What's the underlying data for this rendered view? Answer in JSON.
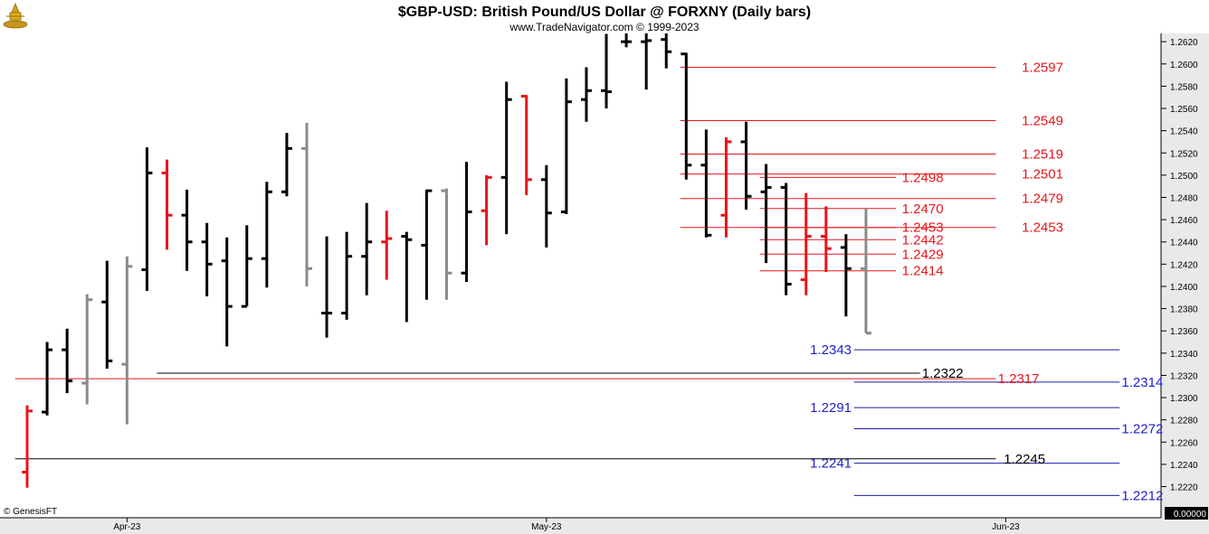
{
  "header": {
    "title": "$GBP-USD:  British Pound/US Dollar @ FORXNY  (Daily bars)",
    "subtitle": "www.TradeNavigator.com © 1999-2023"
  },
  "credit": "© GenesisFT",
  "logo_icon": "genesis-gold-logo-icon",
  "readout_box": "0.00000",
  "colors": {
    "background": "#ffffff",
    "panel": "#e9e9e9",
    "bar_black": "#000000",
    "bar_red": "#e8141c",
    "bar_gray": "#8a8a8a",
    "line_red": "#e8141c",
    "line_blue": "#1a1aa8",
    "line_black": "#000000",
    "label_red": "#e8141c",
    "label_blue": "#1e1ec8",
    "label_black": "#000000"
  },
  "chart_data": {
    "type": "ohlc",
    "y_axis": {
      "min": 1.2205,
      "max": 1.2625,
      "ticks": [
        "1.2220",
        "1.2240",
        "1.2260",
        "1.2280",
        "1.2300",
        "1.2320",
        "1.2340",
        "1.2360",
        "1.2380",
        "1.2400",
        "1.2420",
        "1.2440",
        "1.2460",
        "1.2480",
        "1.2500",
        "1.2520",
        "1.2540",
        "1.2560",
        "1.2580",
        "1.2600",
        "1.2620"
      ]
    },
    "x_axis": {
      "ticks": [
        {
          "label": "Apr-23",
          "index": 5
        },
        {
          "label": "May-23",
          "index": 26
        },
        {
          "label": "Jun-23",
          "index": 49
        }
      ]
    },
    "bars": [
      {
        "o": 1.2233,
        "h": 1.2293,
        "l": 1.2219,
        "c": 1.2288,
        "color": "red"
      },
      {
        "o": 1.2287,
        "h": 1.235,
        "l": 1.2284,
        "c": 1.2343,
        "color": "black"
      },
      {
        "o": 1.2343,
        "h": 1.2362,
        "l": 1.2304,
        "c": 1.2315,
        "color": "black"
      },
      {
        "o": 1.2313,
        "h": 1.2393,
        "l": 1.2294,
        "c": 1.2388,
        "color": "gray"
      },
      {
        "o": 1.2386,
        "h": 1.2423,
        "l": 1.2326,
        "c": 1.2333,
        "color": "black"
      },
      {
        "o": 1.233,
        "h": 1.2427,
        "l": 1.2276,
        "c": 1.2418,
        "color": "gray"
      },
      {
        "o": 1.2415,
        "h": 1.2525,
        "l": 1.2396,
        "c": 1.2502,
        "color": "black"
      },
      {
        "o": 1.2502,
        "h": 1.2514,
        "l": 1.2433,
        "c": 1.2464,
        "color": "red"
      },
      {
        "o": 1.2464,
        "h": 1.2487,
        "l": 1.2414,
        "c": 1.244,
        "color": "black"
      },
      {
        "o": 1.244,
        "h": 1.2457,
        "l": 1.2391,
        "c": 1.242,
        "color": "black"
      },
      {
        "o": 1.2423,
        "h": 1.2444,
        "l": 1.2346,
        "c": 1.2382,
        "color": "black"
      },
      {
        "o": 1.2382,
        "h": 1.2455,
        "l": 1.2382,
        "c": 1.2425,
        "color": "black"
      },
      {
        "o": 1.2425,
        "h": 1.2494,
        "l": 1.2399,
        "c": 1.2485,
        "color": "black"
      },
      {
        "o": 1.2485,
        "h": 1.2538,
        "l": 1.2481,
        "c": 1.2524,
        "color": "black"
      },
      {
        "o": 1.2524,
        "h": 1.2547,
        "l": 1.24,
        "c": 1.2416,
        "color": "gray"
      },
      {
        "o": 1.2376,
        "h": 1.2445,
        "l": 1.2354,
        "c": 1.2376,
        "color": "black"
      },
      {
        "o": 1.2376,
        "h": 1.2449,
        "l": 1.237,
        "c": 1.2427,
        "color": "black"
      },
      {
        "o": 1.2427,
        "h": 1.2475,
        "l": 1.2392,
        "c": 1.244,
        "color": "black"
      },
      {
        "o": 1.244,
        "h": 1.2468,
        "l": 1.2406,
        "c": 1.2443,
        "color": "red"
      },
      {
        "o": 1.2445,
        "h": 1.2449,
        "l": 1.2368,
        "c": 1.2442,
        "color": "black"
      },
      {
        "o": 1.2437,
        "h": 1.2487,
        "l": 1.2388,
        "c": 1.2486,
        "color": "black"
      },
      {
        "o": 1.2486,
        "h": 1.2488,
        "l": 1.2388,
        "c": 1.2412,
        "color": "gray"
      },
      {
        "o": 1.2412,
        "h": 1.2512,
        "l": 1.2404,
        "c": 1.2467,
        "color": "black"
      },
      {
        "o": 1.2468,
        "h": 1.25,
        "l": 1.2437,
        "c": 1.2498,
        "color": "red"
      },
      {
        "o": 1.2498,
        "h": 1.2584,
        "l": 1.2447,
        "c": 1.2568,
        "color": "black"
      },
      {
        "o": 1.2571,
        "h": 1.2572,
        "l": 1.2482,
        "c": 1.2496,
        "color": "red"
      },
      {
        "o": 1.2496,
        "h": 1.2509,
        "l": 1.2435,
        "c": 1.2466,
        "color": "black"
      },
      {
        "o": 1.2467,
        "h": 1.2587,
        "l": 1.2465,
        "c": 1.2566,
        "color": "black"
      },
      {
        "o": 1.2568,
        "h": 1.2597,
        "l": 1.2548,
        "c": 1.2576,
        "color": "black"
      },
      {
        "o": 1.2576,
        "h": 1.2627,
        "l": 1.256,
        "c": 1.2575,
        "color": "black"
      },
      {
        "o": 1.262,
        "h": 1.263,
        "l": 1.2615,
        "c": 1.262,
        "color": "black"
      },
      {
        "o": 1.262,
        "h": 1.263,
        "l": 1.2577,
        "c": 1.2621,
        "color": "black"
      },
      {
        "o": 1.2622,
        "h": 1.2628,
        "l": 1.2596,
        "c": 1.2611,
        "color": "black"
      },
      {
        "o": 1.2609,
        "h": 1.261,
        "l": 1.2496,
        "c": 1.2509,
        "color": "black"
      },
      {
        "o": 1.2509,
        "h": 1.2541,
        "l": 1.2444,
        "c": 1.2446,
        "color": "black"
      },
      {
        "o": 1.2464,
        "h": 1.2534,
        "l": 1.2444,
        "c": 1.253,
        "color": "red"
      },
      {
        "o": 1.253,
        "h": 1.2548,
        "l": 1.2469,
        "c": 1.2481,
        "color": "black"
      },
      {
        "o": 1.2485,
        "h": 1.251,
        "l": 1.2421,
        "c": 1.2489,
        "color": "black"
      },
      {
        "o": 1.2489,
        "h": 1.2493,
        "l": 1.2392,
        "c": 1.2402,
        "color": "black"
      },
      {
        "o": 1.2406,
        "h": 1.2484,
        "l": 1.2392,
        "c": 1.2445,
        "color": "red"
      },
      {
        "o": 1.2445,
        "h": 1.2472,
        "l": 1.2413,
        "c": 1.2434,
        "color": "red"
      },
      {
        "o": 1.2435,
        "h": 1.2447,
        "l": 1.2373,
        "c": 1.2416,
        "color": "black"
      },
      {
        "o": 1.2416,
        "h": 1.247,
        "l": 1.2358,
        "c": 1.2358,
        "color": "gray"
      }
    ],
    "levels": [
      {
        "price": 1.2597,
        "label": "1.2597",
        "color": "red",
        "from": 32.7,
        "to": 48.5,
        "label_at": 49.8
      },
      {
        "price": 1.2549,
        "label": "1.2549",
        "color": "red",
        "from": 32.7,
        "to": 48.5,
        "label_at": 49.8
      },
      {
        "price": 1.2519,
        "label": "1.2519",
        "color": "red",
        "from": 32.7,
        "to": 48.5,
        "label_at": 49.8
      },
      {
        "price": 1.2501,
        "label": "1.2501",
        "color": "red",
        "from": 32.7,
        "to": 48.5,
        "label_at": 49.8
      },
      {
        "price": 1.2479,
        "label": "1.2479",
        "color": "red",
        "from": 32.7,
        "to": 48.5,
        "label_at": 49.8
      },
      {
        "price": 1.2453,
        "label": "1.2453",
        "color": "red",
        "from": 32.7,
        "to": 48.5,
        "label_at": 49.8
      },
      {
        "price": 1.2498,
        "label": "1.2498",
        "color": "red",
        "from": 36.7,
        "to": 43.5,
        "label_at": 43.8
      },
      {
        "price": 1.247,
        "label": "1.2470",
        "color": "red",
        "from": 36.7,
        "to": 43.5,
        "label_at": 43.8
      },
      {
        "price": 1.2453,
        "label": "1.2453",
        "color": "red",
        "from": 36.7,
        "to": 43.5,
        "label_at": 43.8
      },
      {
        "price": 1.2442,
        "label": "1.2442",
        "color": "red",
        "from": 36.7,
        "to": 43.5,
        "label_at": 43.8
      },
      {
        "price": 1.2429,
        "label": "1.2429",
        "color": "red",
        "from": 36.7,
        "to": 43.5,
        "label_at": 43.8
      },
      {
        "price": 1.2414,
        "label": "1.2414",
        "color": "red",
        "from": 36.7,
        "to": 43.5,
        "label_at": 43.8
      },
      {
        "price": 1.2343,
        "label": "1.2343",
        "color": "blue",
        "from": 41.4,
        "to": 54.7,
        "label_at": 39.2
      },
      {
        "price": 1.2291,
        "label": "1.2291",
        "color": "blue",
        "from": 41.4,
        "to": 54.7,
        "label_at": 39.2
      },
      {
        "price": 1.2241,
        "label": "1.2241",
        "color": "blue",
        "from": 41.4,
        "to": 54.7,
        "label_at": 39.2
      },
      {
        "price": 1.2314,
        "label": "1.2314",
        "color": "blue",
        "from": 41.4,
        "to": 54.7,
        "label_at": 54.8
      },
      {
        "price": 1.2272,
        "label": "1.2272",
        "color": "blue",
        "from": 41.4,
        "to": 54.7,
        "label_at": 54.8
      },
      {
        "price": 1.2212,
        "label": "1.2212",
        "color": "blue",
        "from": 41.4,
        "to": 54.7,
        "label_at": 54.8
      },
      {
        "price": 1.2322,
        "label": "1.2322",
        "color": "black",
        "from": 6.5,
        "to": 44.7,
        "label_at": 44.8
      },
      {
        "price": 1.2245,
        "label": "1.2245",
        "color": "black",
        "from": -0.6,
        "to": 48.5,
        "label_at": 48.9
      },
      {
        "price": 1.2317,
        "label": "1.2317",
        "color": "red",
        "from": -0.6,
        "to": 48.5,
        "label_at": 48.6
      }
    ]
  }
}
